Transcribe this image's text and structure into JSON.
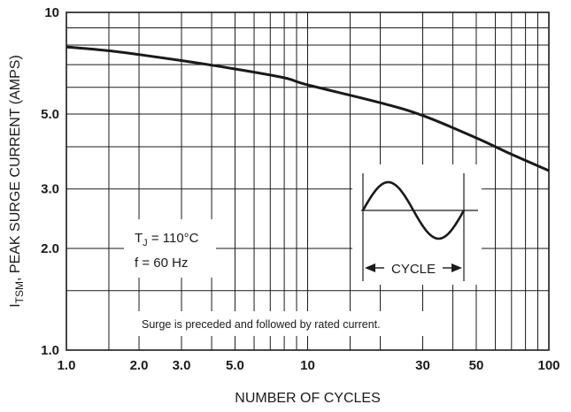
{
  "chart_data": {
    "type": "line",
    "xscale": "log",
    "yscale": "log",
    "xlim": [
      1,
      100
    ],
    "ylim": [
      1,
      10
    ],
    "grid": true,
    "xlabel": "NUMBER OF CYCLES",
    "ylabel_main": "I",
    "ylabel_sub": "TSM",
    "ylabel_rest": ", PEAK SURGE CURRENT (AMPS)",
    "x_tick_labels": [
      {
        "v": 1,
        "t": "1.0"
      },
      {
        "v": 2,
        "t": "2.0"
      },
      {
        "v": 3,
        "t": "3.0"
      },
      {
        "v": 5,
        "t": "5.0"
      },
      {
        "v": 10,
        "t": "10"
      },
      {
        "v": 30,
        "t": "30"
      },
      {
        "v": 50,
        "t": "50"
      },
      {
        "v": 100,
        "t": "100"
      }
    ],
    "y_tick_labels": [
      {
        "v": 1,
        "t": "1.0"
      },
      {
        "v": 2,
        "t": "2.0"
      },
      {
        "v": 3,
        "t": "3.0"
      },
      {
        "v": 5,
        "t": "5.0"
      },
      {
        "v": 10,
        "t": "10"
      }
    ],
    "x_gridlines": [
      1,
      1.5,
      2,
      3,
      4,
      5,
      6,
      7,
      8,
      9,
      10,
      15,
      20,
      30,
      40,
      50,
      60,
      70,
      80,
      90,
      100
    ],
    "y_gridlines": [
      1,
      1.5,
      2,
      3,
      4,
      5,
      6,
      7,
      8,
      9,
      10
    ],
    "series": [
      {
        "x": [
          1,
          1.5,
          2,
          3,
          5,
          8,
          10,
          20,
          30,
          50,
          70,
          100
        ],
        "y": [
          7.9,
          7.7,
          7.5,
          7.2,
          6.8,
          6.4,
          6.1,
          5.4,
          4.95,
          4.25,
          3.8,
          3.4
        ]
      }
    ],
    "annotations": {
      "tj_main": "T",
      "tj_sub": "J",
      "tj_rest": " = 110°C",
      "freq": "f = 60 Hz",
      "note": "Surge is preceded and followed by rated current.",
      "cycle": "CYCLE"
    }
  }
}
